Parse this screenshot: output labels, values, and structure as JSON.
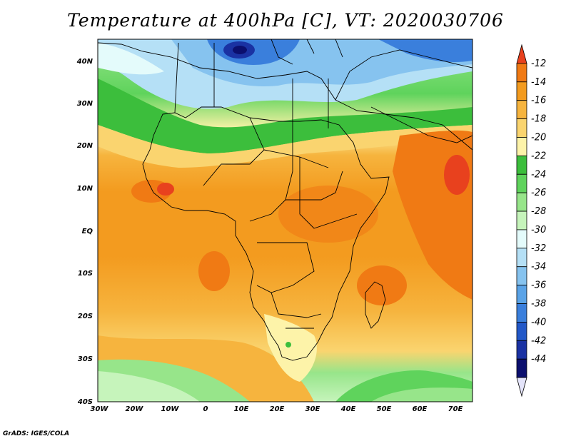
{
  "title": "Temperature at 400hPa [C], VT: 2020030706",
  "credit": "GrADS: IGES/COLA",
  "axes": {
    "lat_labels": [
      "40N",
      "30N",
      "20N",
      "10N",
      "EQ",
      "10S",
      "20S",
      "30S",
      "40S"
    ],
    "lon_labels": [
      "30W",
      "20W",
      "10W",
      "0",
      "10E",
      "20E",
      "30E",
      "40E",
      "50E",
      "60E",
      "70E"
    ]
  },
  "colorbar": {
    "levels": [
      "-12",
      "-14",
      "-16",
      "-18",
      "-20",
      "-22",
      "-24",
      "-26",
      "-28",
      "-30",
      "-32",
      "-34",
      "-36",
      "-38",
      "-40",
      "-42",
      "-44"
    ],
    "colors": [
      "#e8411e",
      "#f07a14",
      "#f39b1f",
      "#f6b43e",
      "#fad46f",
      "#fdf3a9",
      "#3cbe3c",
      "#5fd35c",
      "#97e58a",
      "#c6f4bb",
      "#e4fbfb",
      "#b5e0f6",
      "#86c3ef",
      "#5aa3e7",
      "#3a7fdc",
      "#2258c8",
      "#1a32a3",
      "#0b0f6e",
      "#e4e4fa"
    ]
  },
  "regions": {
    "ocean_south": "-16 to -18",
    "north_africa": "-22 to -24",
    "mediterranean": "-30 to -42",
    "central_africa": "-14 to -16"
  }
}
